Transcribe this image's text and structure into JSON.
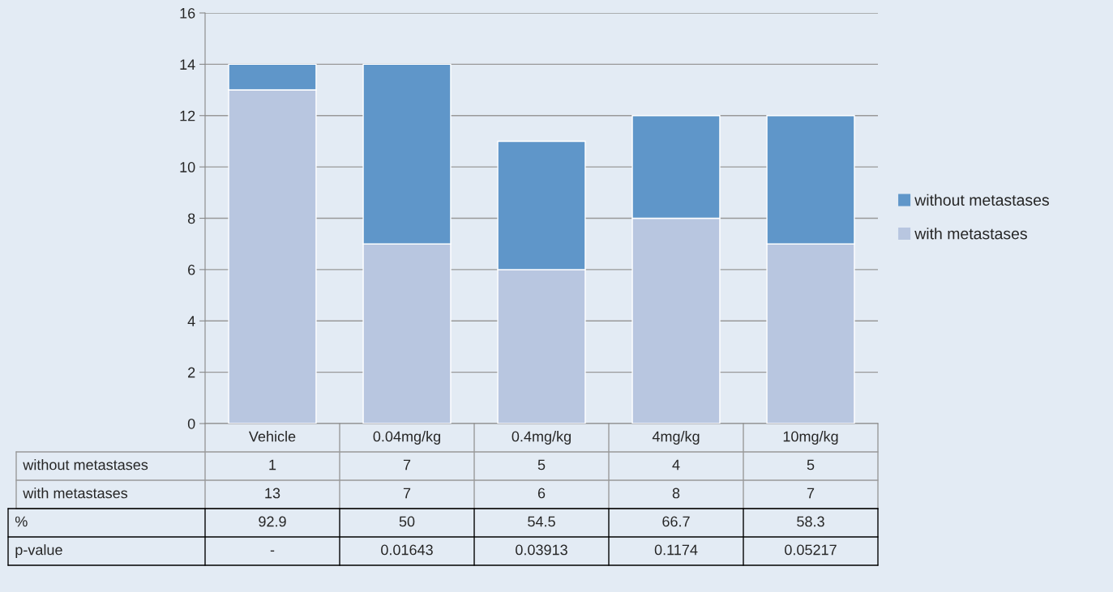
{
  "chart_data": {
    "type": "bar",
    "stacked": true,
    "categories": [
      "Vehicle",
      "0.04mg/kg",
      "0.4mg/kg",
      "4mg/kg",
      "10mg/kg"
    ],
    "series": [
      {
        "name": "with metastases",
        "color": "#b8c6e0",
        "values": [
          13,
          7,
          6,
          8,
          7
        ]
      },
      {
        "name": "without metastases",
        "color": "#5f96c9",
        "values": [
          1,
          7,
          5,
          4,
          5
        ]
      }
    ],
    "ylim": [
      0,
      16
    ],
    "yticks": [
      0,
      2,
      4,
      6,
      8,
      10,
      12,
      14,
      16
    ],
    "grid": "y",
    "legend": "right",
    "data_labels": true,
    "annotations": [
      "%",
      "92.9",
      "50",
      "54.5",
      "66.7",
      "58.3",
      "p-value",
      "-",
      "0.01643",
      "0.03913",
      "0.1174",
      "0.05217"
    ]
  }
}
